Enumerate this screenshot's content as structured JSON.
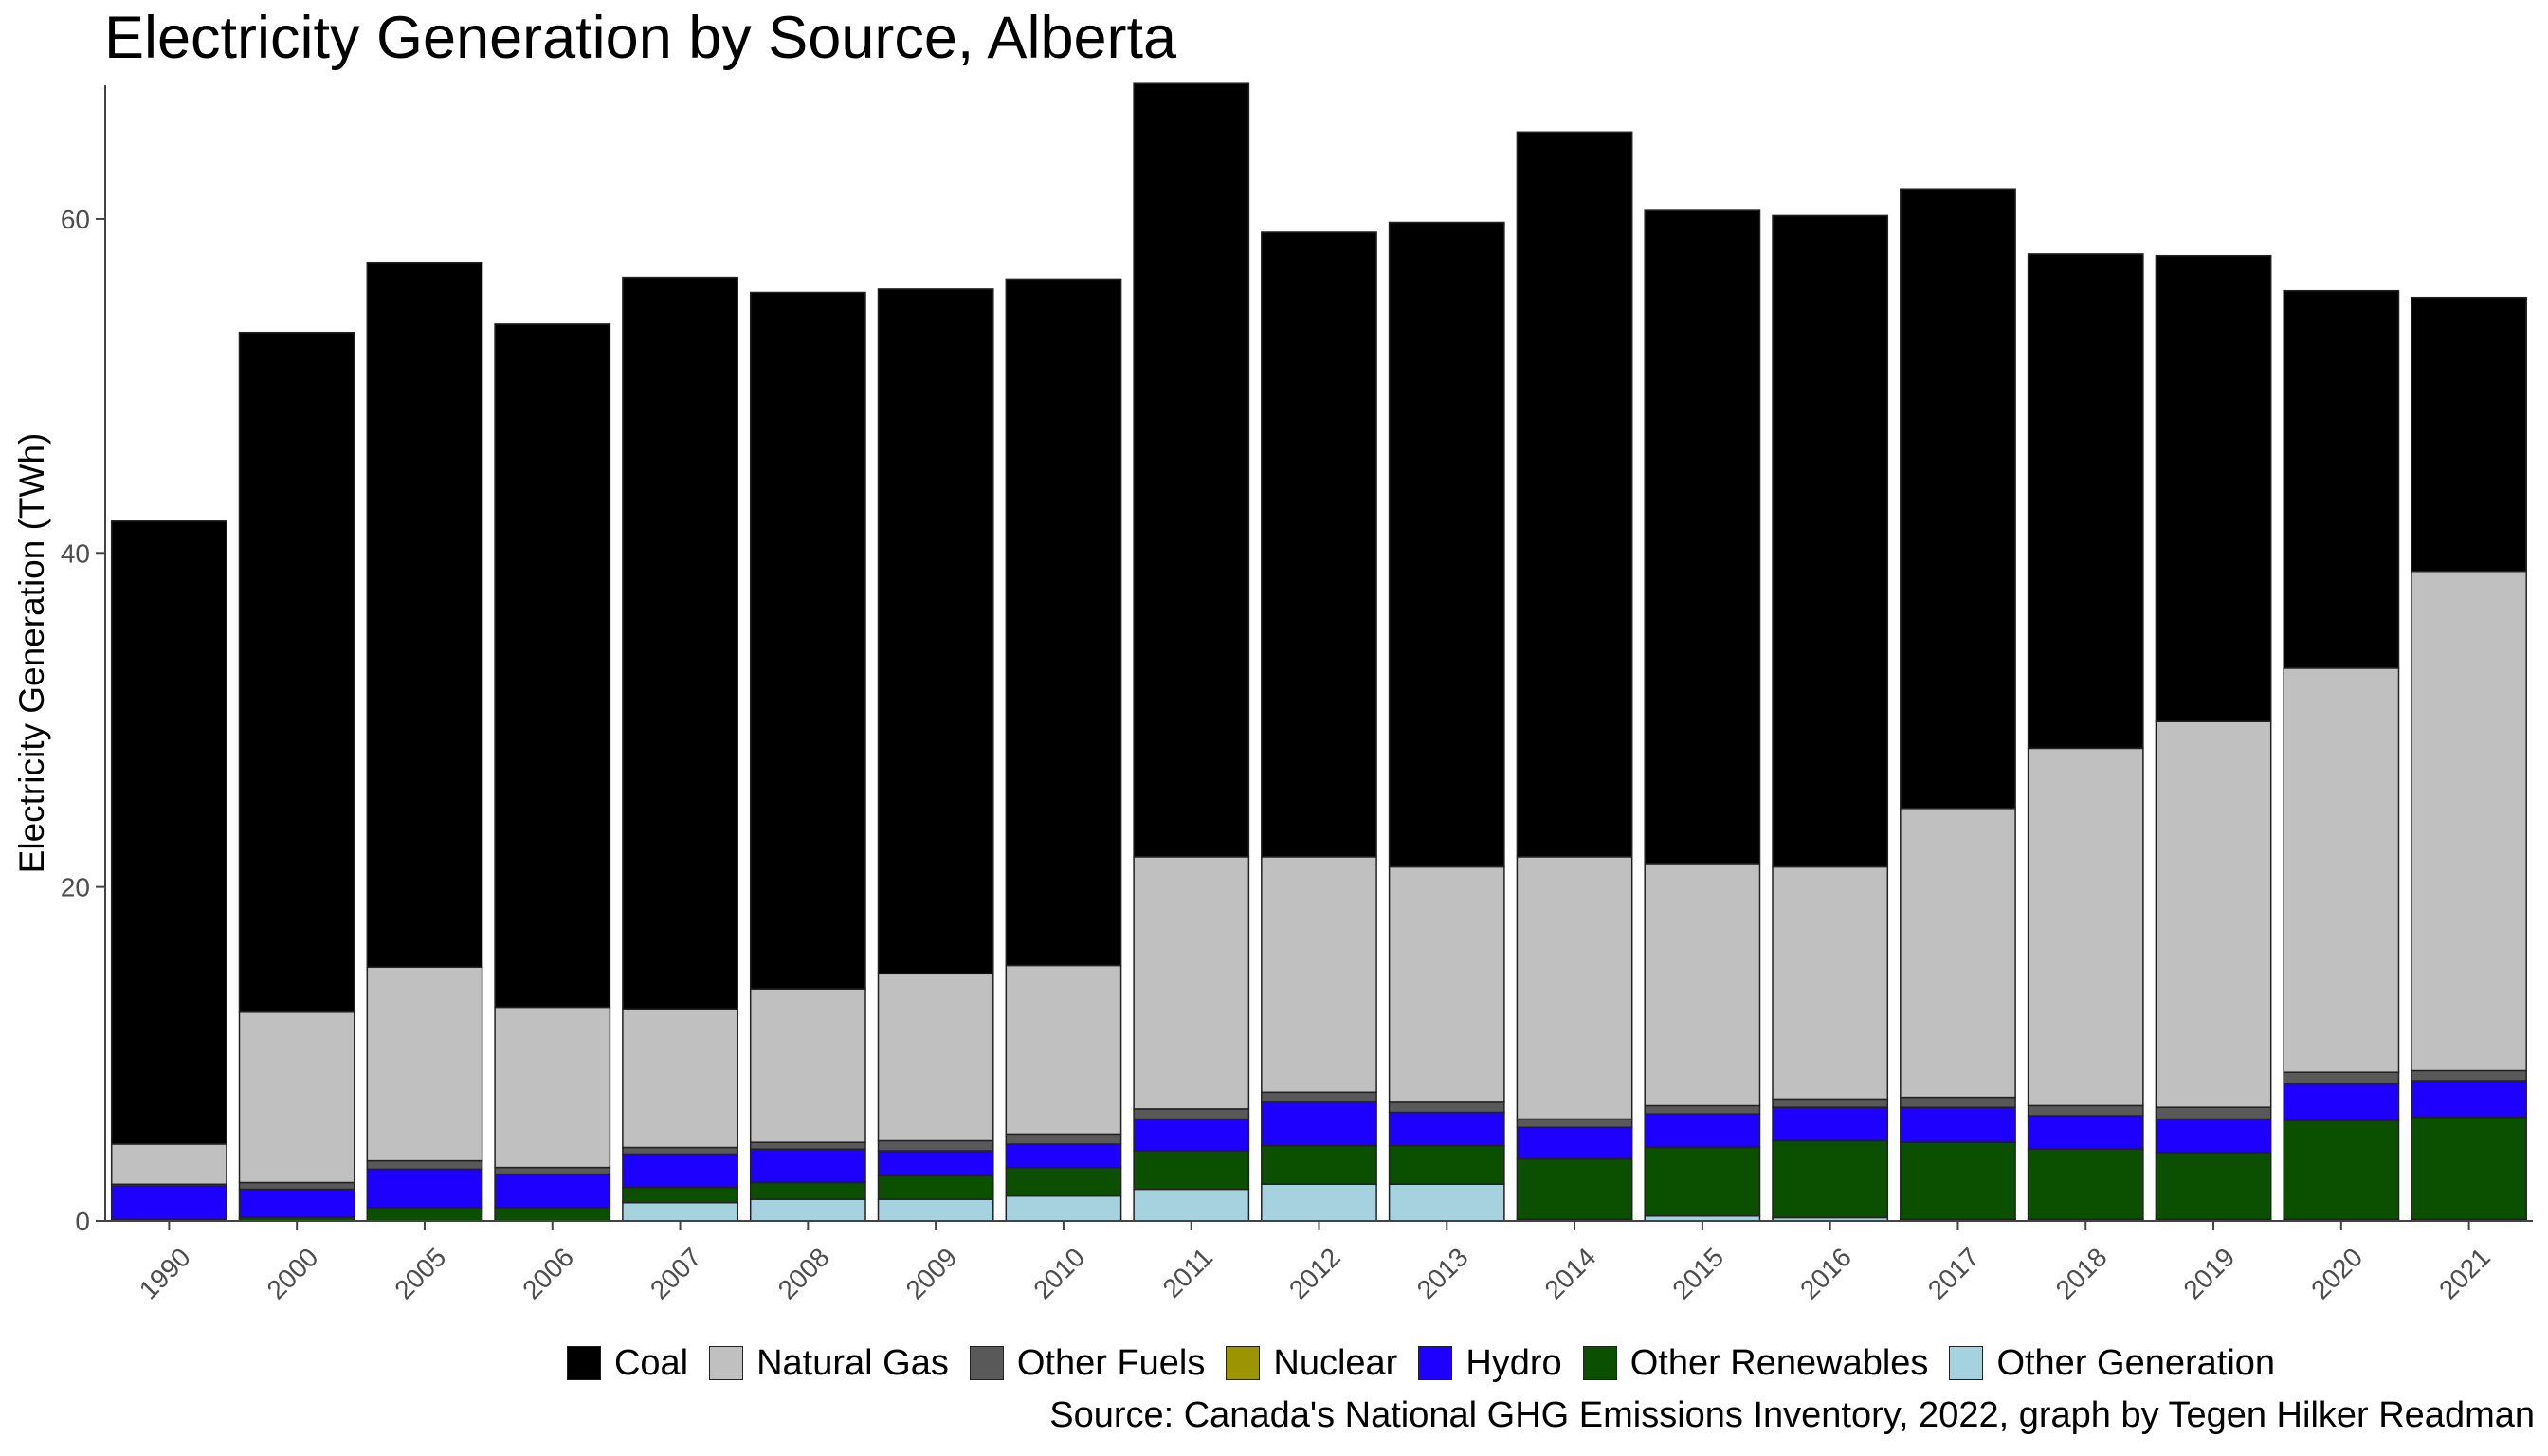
{
  "chart_data": {
    "type": "bar",
    "stacked": true,
    "title": "Electricity Generation by Source, Alberta",
    "xlabel": "",
    "ylabel": "Electricity Generation (TWh)",
    "ylim": [
      0,
      68
    ],
    "yticks": [
      0,
      20,
      40,
      60
    ],
    "grid": false,
    "legend_position": "bottom",
    "caption": "Source: Canada's National GHG Emissions Inventory, 2022, graph by Tegen Hilker Readman",
    "categories": [
      "1990",
      "2000",
      "2005",
      "2006",
      "2007",
      "2008",
      "2009",
      "2010",
      "2011",
      "2012",
      "2013",
      "2014",
      "2015",
      "2016",
      "2017",
      "2018",
      "2019",
      "2020",
      "2021"
    ],
    "series": [
      {
        "name": "Other Generation",
        "color": "#a6d2e0",
        "values": [
          0,
          0,
          0,
          0,
          1.1,
          1.3,
          1.3,
          1.5,
          1.9,
          2.2,
          2.2,
          0.1,
          0.3,
          0.2,
          0.1,
          0.1,
          0.1,
          0.1,
          0.1
        ]
      },
      {
        "name": "Other Renewables",
        "color": "#0b5000",
        "values": [
          0.1,
          0.2,
          0.8,
          0.8,
          0.9,
          1.0,
          1.4,
          1.7,
          2.3,
          2.3,
          2.3,
          3.6,
          4.1,
          4.6,
          4.6,
          4.2,
          4.0,
          5.9,
          6.1
        ]
      },
      {
        "name": "Hydro",
        "color": "#1e00ff",
        "values": [
          2.0,
          1.7,
          2.3,
          2.0,
          2.0,
          2.0,
          1.5,
          1.4,
          1.9,
          2.6,
          2.0,
          1.9,
          2.0,
          2.0,
          2.1,
          2.0,
          2.0,
          2.2,
          2.2
        ]
      },
      {
        "name": "Nuclear",
        "color": "#9c9400",
        "values": [
          0,
          0,
          0,
          0,
          0,
          0,
          0,
          0,
          0,
          0,
          0,
          0,
          0,
          0,
          0,
          0,
          0,
          0,
          0
        ]
      },
      {
        "name": "Other Fuels",
        "color": "#595959",
        "values": [
          0.1,
          0.4,
          0.5,
          0.4,
          0.4,
          0.4,
          0.6,
          0.6,
          0.6,
          0.6,
          0.6,
          0.5,
          0.5,
          0.5,
          0.6,
          0.6,
          0.7,
          0.7,
          0.6
        ]
      },
      {
        "name": "Natural Gas",
        "color": "#c0c0c0",
        "values": [
          2.4,
          10.2,
          11.6,
          9.6,
          8.3,
          9.2,
          10.0,
          10.1,
          15.1,
          14.1,
          14.1,
          15.7,
          14.5,
          13.9,
          17.3,
          21.4,
          23.1,
          24.2,
          29.9
        ]
      },
      {
        "name": "Coal",
        "color": "#000000",
        "values": [
          37.3,
          40.7,
          42.2,
          40.9,
          43.8,
          41.7,
          41.0,
          41.1,
          46.3,
          37.4,
          38.6,
          43.4,
          39.1,
          39.0,
          37.1,
          29.6,
          27.9,
          22.6,
          16.4
        ]
      }
    ],
    "legend_order": [
      "Coal",
      "Natural Gas",
      "Other Fuels",
      "Nuclear",
      "Hydro",
      "Other Renewables",
      "Other Generation"
    ]
  }
}
